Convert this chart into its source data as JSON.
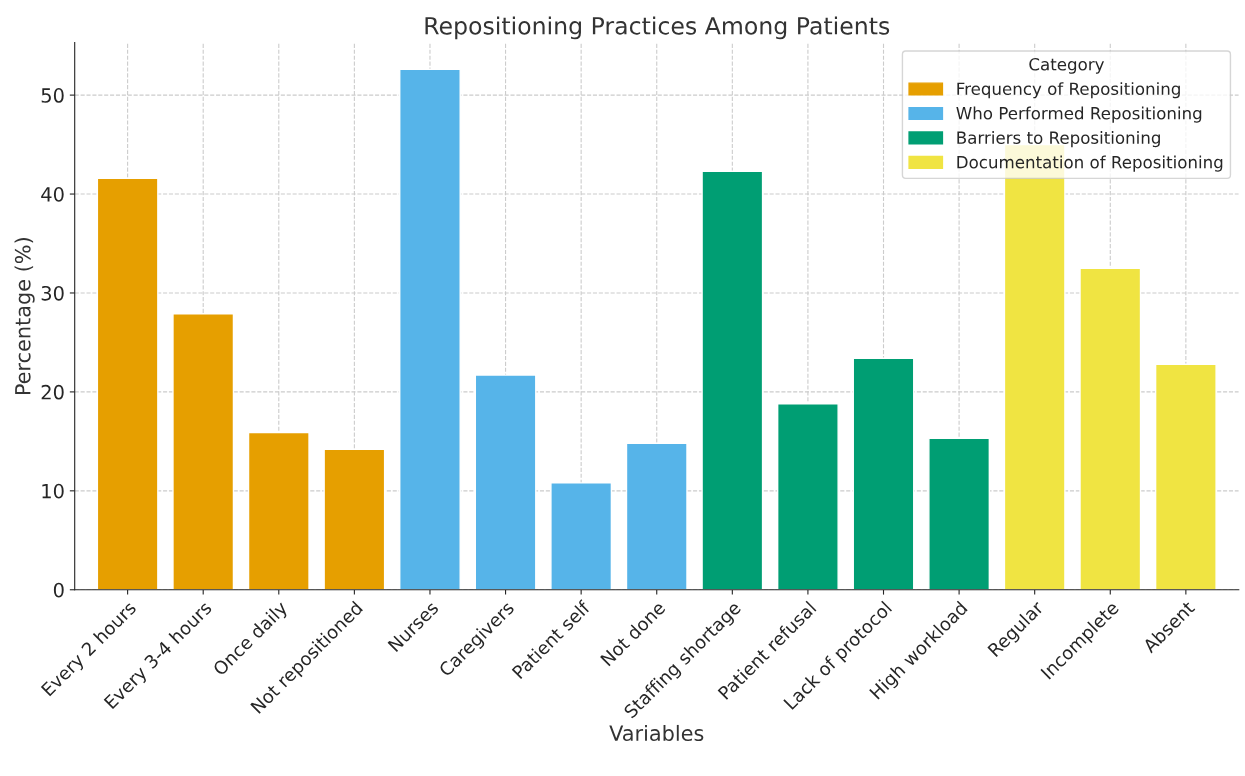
{
  "chart_data": {
    "type": "bar",
    "title": "Repositioning Practices Among Patients",
    "xlabel": "Variables",
    "ylabel": "Percentage (%)",
    "legend_title": "Category",
    "categories": [
      "Every 2 hours",
      "Every 3-4 hours",
      "Once daily",
      "Not repositioned",
      "Nurses",
      "Caregivers",
      "Patient self",
      "Not done",
      "Staffing shortage",
      "Patient refusal",
      "Lack of protocol",
      "High workload",
      "Regular",
      "Incomplete",
      "Absent"
    ],
    "series": [
      {
        "name": "Frequency of Repositioning",
        "color": "#e69f00",
        "values": [
          41.6,
          27.9,
          15.9,
          14.2,
          null,
          null,
          null,
          null,
          null,
          null,
          null,
          null,
          null,
          null,
          null
        ]
      },
      {
        "name": "Who Performed Repositioning",
        "color": "#56b4e9",
        "values": [
          null,
          null,
          null,
          null,
          52.6,
          21.7,
          10.8,
          14.8,
          null,
          null,
          null,
          null,
          null,
          null,
          null
        ]
      },
      {
        "name": "Barriers to Repositioning",
        "color": "#009e73",
        "values": [
          null,
          null,
          null,
          null,
          null,
          null,
          null,
          null,
          42.3,
          18.8,
          23.4,
          15.3,
          null,
          null,
          null
        ]
      },
      {
        "name": "Documentation of Repositioning",
        "color": "#f0e442",
        "values": [
          null,
          null,
          null,
          null,
          null,
          null,
          null,
          null,
          null,
          null,
          null,
          null,
          45.0,
          32.5,
          22.8
        ]
      }
    ],
    "ylim": [
      0,
      55.3
    ],
    "yticks": [
      0,
      10,
      20,
      30,
      40,
      50
    ],
    "grid": true,
    "legend": "top right"
  }
}
